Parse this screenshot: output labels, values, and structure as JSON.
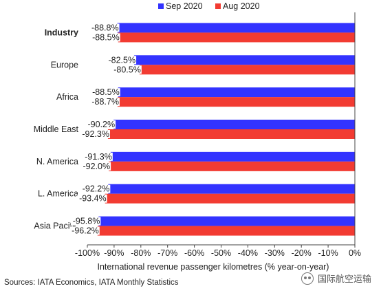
{
  "chart_data": {
    "type": "bar",
    "orientation": "horizontal",
    "categories": [
      "Industry",
      "Europe",
      "Africa",
      "Middle East",
      "N. America",
      "L. America",
      "Asia Pacific"
    ],
    "category_bold": [
      true,
      false,
      false,
      false,
      false,
      false,
      false
    ],
    "series": [
      {
        "name": "Sep 2020",
        "color": "#3333ff",
        "values": [
          -88.8,
          -82.5,
          -88.5,
          -90.2,
          -91.3,
          -92.2,
          -95.8
        ],
        "labels": [
          "-88.8%",
          "-82.5%",
          "-88.5%",
          "-90.2%",
          "-91.3%",
          "-92.2%",
          "-95.8%"
        ]
      },
      {
        "name": "Aug 2020",
        "color": "#f23b32",
        "values": [
          -88.5,
          -80.5,
          -88.7,
          -92.3,
          -92.0,
          -93.4,
          -96.2
        ],
        "labels": [
          "-88.5%",
          "-80.5%",
          "-88.7%",
          "-92.3%",
          "-92.0%",
          "-93.4%",
          "-96.2%"
        ]
      }
    ],
    "xlim": [
      -100,
      0
    ],
    "xticks": [
      -100,
      -90,
      -80,
      -70,
      -60,
      -50,
      -40,
      -30,
      -20,
      -10,
      0
    ],
    "xtick_labels": [
      "-100%",
      "-90%",
      "-80%",
      "-70%",
      "-60%",
      "-50%",
      "-40%",
      "-30%",
      "-20%",
      "-10%",
      "0%"
    ],
    "xlabel": "International revenue passenger kilometres (% year-on-year)",
    "legend_position": "top-center",
    "grid": false
  },
  "source_note": "Sources: IATA Economics, IATA Monthly Statistics",
  "watermark_text": "国际航空运输"
}
